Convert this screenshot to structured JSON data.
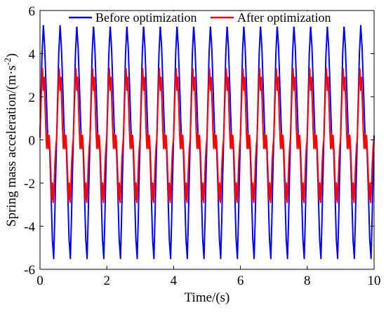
{
  "chart_data": {
    "type": "line",
    "title": "",
    "xlabel": "Time/(s)",
    "ylabel_parts": [
      "Spring mass acceleration/(m·s",
      "-2",
      ")"
    ],
    "xlim": [
      0,
      10
    ],
    "ylim": [
      -6,
      6
    ],
    "xticks": [
      "0",
      "2",
      "4",
      "6",
      "8",
      "10"
    ],
    "yticks": [
      "-6",
      "-4",
      "-2",
      "0",
      "2",
      "4",
      "6"
    ],
    "grid": false,
    "legend_position": "top",
    "period_s": 0.5,
    "series": [
      {
        "name": "Before optimization",
        "color": "#0000ff",
        "waveform_one_period": {
          "t_fraction": [
            0.0,
            0.06,
            0.12,
            0.2,
            0.28,
            0.36,
            0.44,
            0.48,
            0.52,
            0.58,
            0.66,
            0.74,
            0.82,
            0.88,
            0.94,
            1.0
          ],
          "value": [
            0.2,
            2.0,
            4.0,
            5.3,
            4.3,
            2.5,
            0.6,
            -0.1,
            0.2,
            -0.4,
            -2.4,
            -4.6,
            -5.5,
            -3.8,
            -1.6,
            0.2
          ]
        }
      },
      {
        "name": "After optimization",
        "color": "#ff0000",
        "waveform_one_period": {
          "t_fraction": [
            0.0,
            0.05,
            0.1,
            0.15,
            0.2,
            0.25,
            0.3,
            0.35,
            0.4,
            0.45,
            0.5,
            0.55,
            0.6,
            0.65,
            0.7,
            0.75,
            0.8,
            0.85,
            0.9,
            0.95,
            1.0
          ],
          "value": [
            0.1,
            1.4,
            2.6,
            3.3,
            2.3,
            2.9,
            1.8,
            0.5,
            -0.4,
            0.3,
            -0.4,
            0.2,
            -0.5,
            -1.6,
            -2.8,
            -2.0,
            -2.9,
            -2.1,
            -1.0,
            -0.3,
            0.1
          ]
        }
      }
    ]
  }
}
